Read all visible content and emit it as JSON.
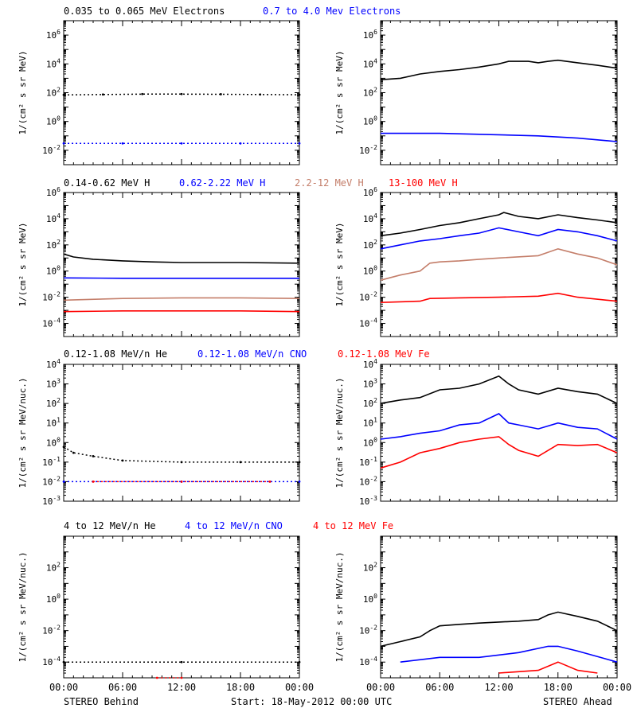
{
  "colors": {
    "black": "#000000",
    "blue": "#0000ff",
    "tan": "#c47e6a",
    "red": "#ff0000"
  },
  "footer": {
    "left": "STEREO Behind",
    "center": "Start: 18-May-2012 00:00 UTC",
    "right": "STEREO Ahead"
  },
  "x_ticks": [
    "00:00",
    "06:00",
    "12:00",
    "18:00",
    "00:00"
  ],
  "chart_data": [
    {
      "type": "scatter",
      "row": 1,
      "spacecraft": "STEREO Behind",
      "legend": [
        {
          "label": "0.035 to 0.065 MeV Electrons",
          "color": "#000000"
        },
        {
          "label": "0.7 to 4.0 Mev Electrons",
          "color": "#0000ff"
        }
      ],
      "ylabel": "1/(cm² s sr MeV)",
      "yscale": "log",
      "ylim_exp": [
        -3,
        7
      ],
      "yticks_exp": [
        -2,
        0,
        2,
        4,
        6
      ],
      "xlim_hours": [
        0,
        24
      ],
      "series": [
        {
          "color": "#000000",
          "hours": [
            0,
            4,
            8,
            12,
            16,
            20,
            24
          ],
          "values": [
            70,
            75,
            80,
            80,
            78,
            75,
            72
          ]
        },
        {
          "color": "#0000ff",
          "hours": [
            0,
            6,
            12,
            18,
            24
          ],
          "values": [
            0.03,
            0.03,
            0.03,
            0.03,
            0.03
          ]
        }
      ]
    },
    {
      "type": "line",
      "row": 1,
      "spacecraft": "STEREO Ahead",
      "legend": [],
      "ylabel": "1/(cm² s sr MeV)",
      "yscale": "log",
      "ylim_exp": [
        -3,
        7
      ],
      "yticks_exp": [
        -2,
        0,
        2,
        4,
        6
      ],
      "xlim_hours": [
        0,
        24
      ],
      "series": [
        {
          "color": "#000000",
          "hours": [
            0,
            2,
            4,
            6,
            8,
            10,
            12,
            13,
            15,
            16,
            17,
            18,
            20,
            22,
            24
          ],
          "values": [
            800,
            1000,
            2000,
            3000,
            4000,
            6000,
            10000,
            15000,
            15000,
            12000,
            15000,
            18000,
            12000,
            8000,
            5000
          ]
        },
        {
          "color": "#0000ff",
          "hours": [
            0,
            6,
            12,
            16,
            20,
            24
          ],
          "values": [
            0.15,
            0.15,
            0.12,
            0.1,
            0.07,
            0.04
          ]
        }
      ]
    },
    {
      "type": "line",
      "row": 2,
      "spacecraft": "STEREO Behind",
      "legend": [
        {
          "label": "0.14-0.62 MeV H",
          "color": "#000000"
        },
        {
          "label": "0.62-2.22 MeV H",
          "color": "#0000ff"
        },
        {
          "label": "2.2-12 MeV H",
          "color": "#c47e6a"
        },
        {
          "label": "13-100 MeV H",
          "color": "#ff0000"
        }
      ],
      "ylabel": "1/(cm² s sr MeV)",
      "yscale": "log",
      "ylim_exp": [
        -5,
        6
      ],
      "yticks_exp": [
        -4,
        -2,
        0,
        2,
        4,
        6
      ],
      "xlim_hours": [
        0,
        24
      ],
      "series": [
        {
          "color": "#000000",
          "hours": [
            0,
            1,
            3,
            6,
            9,
            12,
            18,
            24
          ],
          "values": [
            20,
            12,
            8,
            6,
            5,
            4.5,
            4.5,
            4
          ]
        },
        {
          "color": "#0000ff",
          "hours": [
            0,
            6,
            12,
            18,
            24
          ],
          "values": [
            0.3,
            0.28,
            0.28,
            0.28,
            0.28
          ]
        },
        {
          "color": "#c47e6a",
          "hours": [
            0,
            6,
            12,
            18,
            24
          ],
          "values": [
            0.006,
            0.008,
            0.009,
            0.009,
            0.008
          ]
        },
        {
          "color": "#ff0000",
          "hours": [
            0,
            6,
            12,
            18,
            24
          ],
          "values": [
            0.0008,
            0.0009,
            0.0009,
            0.0009,
            0.0008
          ]
        }
      ]
    },
    {
      "type": "line",
      "row": 2,
      "spacecraft": "STEREO Ahead",
      "legend": [],
      "ylabel": "1/(cm² s sr MeV)",
      "yscale": "log",
      "ylim_exp": [
        -5,
        6
      ],
      "yticks_exp": [
        -4,
        -2,
        0,
        2,
        4,
        6
      ],
      "xlim_hours": [
        0,
        24
      ],
      "series": [
        {
          "color": "#000000",
          "hours": [
            0,
            2,
            4,
            6,
            8,
            10,
            12,
            12.5,
            14,
            16,
            18,
            20,
            22,
            24
          ],
          "values": [
            500,
            800,
            1500,
            3000,
            5000,
            10000,
            20000,
            30000,
            15000,
            10000,
            20000,
            12000,
            8000,
            5000
          ]
        },
        {
          "color": "#0000ff",
          "hours": [
            0,
            2,
            4,
            6,
            8,
            10,
            12,
            14,
            16,
            18,
            20,
            22,
            24
          ],
          "values": [
            50,
            100,
            200,
            300,
            500,
            800,
            2000,
            1000,
            500,
            1500,
            1000,
            500,
            200
          ]
        },
        {
          "color": "#c47e6a",
          "hours": [
            0,
            2,
            4,
            5,
            6,
            8,
            10,
            12,
            16,
            18,
            20,
            22,
            24
          ],
          "values": [
            0.2,
            0.5,
            1,
            4,
            5,
            6,
            8,
            10,
            15,
            50,
            20,
            10,
            3
          ]
        },
        {
          "color": "#ff0000",
          "hours": [
            0,
            4,
            5,
            8,
            12,
            16,
            18,
            20,
            24
          ],
          "values": [
            0.004,
            0.005,
            0.008,
            0.009,
            0.01,
            0.012,
            0.02,
            0.01,
            0.005
          ]
        }
      ]
    },
    {
      "type": "scatter",
      "row": 3,
      "spacecraft": "STEREO Behind",
      "legend": [
        {
          "label": "0.12-1.08 MeV/n He",
          "color": "#000000"
        },
        {
          "label": "0.12-1.08 MeV/n CNO",
          "color": "#0000ff"
        },
        {
          "label": "0.12-1.08 MeV Fe",
          "color": "#ff0000"
        }
      ],
      "ylabel": "1/(cm² s sr MeV/nuc.)",
      "yscale": "log",
      "ylim_exp": [
        -3,
        4
      ],
      "yticks_exp": [
        -3,
        -2,
        -1,
        0,
        1,
        2,
        3,
        4
      ],
      "xlim_hours": [
        0,
        24
      ],
      "series": [
        {
          "color": "#000000",
          "hours": [
            0,
            1,
            3,
            6,
            12,
            18,
            24
          ],
          "values": [
            0.6,
            0.3,
            0.2,
            0.12,
            0.1,
            0.1,
            0.1
          ]
        },
        {
          "color": "#0000ff",
          "hours": [
            0,
            12,
            24
          ],
          "values": [
            0.01,
            0.01,
            0.01
          ]
        },
        {
          "color": "#ff0000",
          "hours": [
            3,
            12,
            21
          ],
          "values": [
            0.01,
            0.01,
            0.01
          ]
        }
      ]
    },
    {
      "type": "line",
      "row": 3,
      "spacecraft": "STEREO Ahead",
      "legend": [],
      "ylabel": "1/(cm² s sr MeV/nuc.)",
      "yscale": "log",
      "ylim_exp": [
        -3,
        4
      ],
      "yticks_exp": [
        -3,
        -2,
        -1,
        0,
        1,
        2,
        3,
        4
      ],
      "xlim_hours": [
        0,
        24
      ],
      "series": [
        {
          "color": "#000000",
          "hours": [
            0,
            2,
            4,
            6,
            8,
            10,
            12,
            13,
            14,
            16,
            18,
            20,
            22,
            24
          ],
          "values": [
            100,
            150,
            200,
            500,
            600,
            1000,
            2500,
            1000,
            500,
            300,
            600,
            400,
            300,
            100
          ]
        },
        {
          "color": "#0000ff",
          "hours": [
            0,
            2,
            4,
            6,
            8,
            10,
            12,
            13,
            14,
            16,
            18,
            20,
            22,
            24
          ],
          "values": [
            1.5,
            2,
            3,
            4,
            8,
            10,
            30,
            10,
            8,
            5,
            10,
            6,
            5,
            1.5
          ]
        },
        {
          "color": "#ff0000",
          "hours": [
            0,
            2,
            4,
            6,
            8,
            10,
            12,
            13,
            14,
            16,
            18,
            20,
            22,
            24
          ],
          "values": [
            0.05,
            0.1,
            0.3,
            0.5,
            1,
            1.5,
            2,
            0.8,
            0.4,
            0.2,
            0.8,
            0.7,
            0.8,
            0.3
          ]
        }
      ]
    },
    {
      "type": "scatter",
      "row": 4,
      "spacecraft": "STEREO Behind",
      "legend": [
        {
          "label": "4 to 12 MeV/n He",
          "color": "#000000"
        },
        {
          "label": "4 to 12 MeV/n CNO",
          "color": "#0000ff"
        },
        {
          "label": "4 to 12 MeV Fe",
          "color": "#ff0000"
        }
      ],
      "ylabel": "1/(cm² s sr MeV/nuc.)",
      "yscale": "log",
      "ylim_exp": [
        -5,
        4
      ],
      "yticks_exp": [
        -4,
        -2,
        0,
        2
      ],
      "xlim_hours": [
        0,
        24
      ],
      "series": [
        {
          "color": "#000000",
          "hours": [
            0,
            12,
            24
          ],
          "values": [
            0.0001,
            0.0001,
            0.0001
          ]
        },
        {
          "color": "#ff0000",
          "hours": [
            9.5,
            12
          ],
          "values": [
            1e-05,
            1e-05
          ]
        }
      ]
    },
    {
      "type": "line",
      "row": 4,
      "spacecraft": "STEREO Ahead",
      "legend": [],
      "ylabel": "1/(cm² s sr MeV/nuc.)",
      "yscale": "log",
      "ylim_exp": [
        -5,
        4
      ],
      "yticks_exp": [
        -4,
        -2,
        0,
        2
      ],
      "xlim_hours": [
        0,
        24
      ],
      "series": [
        {
          "color": "#000000",
          "hours": [
            0,
            2,
            4,
            5,
            6,
            8,
            10,
            12,
            14,
            16,
            17,
            18,
            20,
            22,
            24
          ],
          "values": [
            0.001,
            0.002,
            0.004,
            0.01,
            0.02,
            0.025,
            0.03,
            0.035,
            0.04,
            0.05,
            0.1,
            0.15,
            0.08,
            0.04,
            0.01
          ]
        },
        {
          "color": "#0000ff",
          "hours": [
            2,
            6,
            10,
            14,
            17,
            18,
            20,
            24
          ],
          "values": [
            0.0001,
            0.0002,
            0.0002,
            0.0004,
            0.001,
            0.001,
            0.0005,
            0.0001
          ]
        },
        {
          "color": "#ff0000",
          "hours": [
            12,
            16,
            18,
            20,
            22
          ],
          "values": [
            2e-05,
            3e-05,
            0.0001,
            3e-05,
            2e-05
          ]
        }
      ]
    }
  ]
}
